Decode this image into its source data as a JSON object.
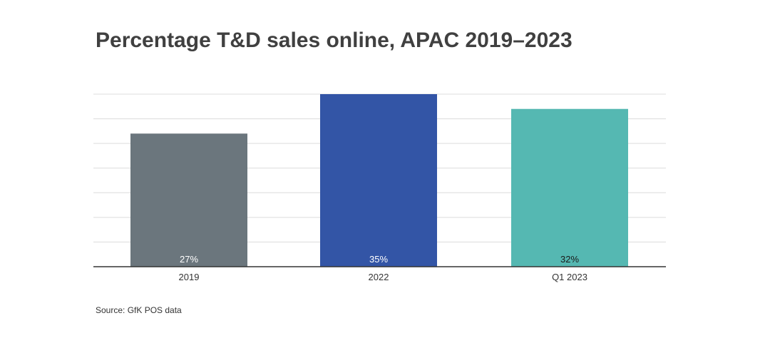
{
  "chart_data": {
    "type": "bar",
    "title": "Percentage T&D sales online, APAC 2019–2023",
    "categories": [
      "2019",
      "2022",
      "Q1 2023"
    ],
    "values": [
      27,
      35,
      32
    ],
    "value_labels": [
      "27%",
      "35%",
      "32%"
    ],
    "bar_colors": [
      "#6b767d",
      "#3355a6",
      "#55b8b2"
    ],
    "value_label_colors": [
      "#ffffff",
      "#ffffff",
      "#1a1a1a"
    ],
    "xlabel": "",
    "ylabel": "",
    "ylim": [
      0,
      35
    ],
    "grid": true,
    "legend": "none"
  },
  "source": "Source: GfK POS data"
}
